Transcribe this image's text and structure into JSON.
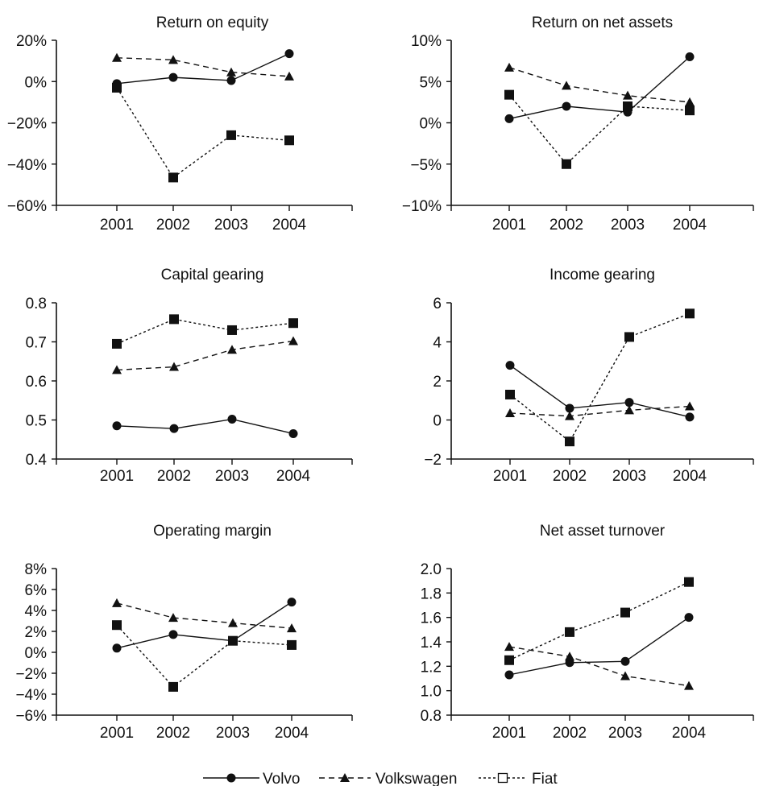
{
  "chart_data": [
    {
      "type": "line",
      "title": "Return on equity",
      "categories": [
        "2001",
        "2002",
        "2003",
        "2004"
      ],
      "ylim": [
        -60,
        20
      ],
      "yticks": [
        -60,
        -40,
        -20,
        0,
        20
      ],
      "ytick_labels": [
        "−60%",
        "−40%",
        "−20%",
        "0%",
        "20%"
      ],
      "series": [
        {
          "name": "Volvo",
          "values": [
            -1,
            2,
            0.5,
            13.5
          ]
        },
        {
          "name": "Volkswagen",
          "values": [
            11.5,
            10.5,
            4.5,
            2.5
          ]
        },
        {
          "name": "Fiat",
          "values": [
            -3,
            -46.5,
            -26,
            -28.5
          ]
        }
      ]
    },
    {
      "type": "line",
      "title": "Return on net assets",
      "categories": [
        "2001",
        "2002",
        "2003",
        "2004"
      ],
      "ylim": [
        -10,
        10
      ],
      "yticks": [
        -10,
        -5,
        0,
        5,
        10
      ],
      "ytick_labels": [
        "−10%",
        "−5%",
        "0%",
        "5%",
        "10%"
      ],
      "series": [
        {
          "name": "Volvo",
          "values": [
            0.5,
            2,
            1.3,
            8
          ]
        },
        {
          "name": "Volkswagen",
          "values": [
            6.7,
            4.5,
            3.3,
            2.5
          ]
        },
        {
          "name": "Fiat",
          "values": [
            3.4,
            -5,
            2,
            1.5
          ]
        }
      ]
    },
    {
      "type": "line",
      "title": "Capital gearing",
      "categories": [
        "2001",
        "2002",
        "2003",
        "2004"
      ],
      "ylim": [
        0.4,
        0.8
      ],
      "yticks": [
        0.4,
        0.5,
        0.6,
        0.7,
        0.8
      ],
      "ytick_labels": [
        "0.4",
        "0.5",
        "0.6",
        "0.7",
        "0.8"
      ],
      "series": [
        {
          "name": "Volvo",
          "values": [
            0.485,
            0.478,
            0.502,
            0.465
          ]
        },
        {
          "name": "Volkswagen",
          "values": [
            0.628,
            0.636,
            0.68,
            0.702
          ]
        },
        {
          "name": "Fiat",
          "values": [
            0.695,
            0.758,
            0.73,
            0.748
          ]
        }
      ]
    },
    {
      "type": "line",
      "title": "Income gearing",
      "categories": [
        "2001",
        "2002",
        "2003",
        "2004"
      ],
      "ylim": [
        -2,
        6
      ],
      "yticks": [
        -2,
        0,
        2,
        4,
        6
      ],
      "ytick_labels": [
        "−2",
        "0",
        "2",
        "4",
        "6"
      ],
      "series": [
        {
          "name": "Volvo",
          "values": [
            2.8,
            0.6,
            0.9,
            0.15
          ]
        },
        {
          "name": "Volkswagen",
          "values": [
            0.35,
            0.2,
            0.5,
            0.7
          ]
        },
        {
          "name": "Fiat",
          "values": [
            1.3,
            -1.1,
            4.25,
            5.45
          ]
        }
      ]
    },
    {
      "type": "line",
      "title": "Operating margin",
      "categories": [
        "2001",
        "2002",
        "2003",
        "2004"
      ],
      "ylim": [
        -6,
        8
      ],
      "yticks": [
        -6,
        -4,
        -2,
        0,
        2,
        4,
        6,
        8
      ],
      "ytick_labels": [
        "−6%",
        "−4%",
        "−2%",
        "0%",
        "2%",
        "4%",
        "6%",
        "8%"
      ],
      "series": [
        {
          "name": "Volvo",
          "values": [
            0.4,
            1.7,
            1.1,
            4.8
          ]
        },
        {
          "name": "Volkswagen",
          "values": [
            4.7,
            3.3,
            2.8,
            2.3
          ]
        },
        {
          "name": "Fiat",
          "values": [
            2.6,
            -3.3,
            1.1,
            0.7
          ]
        }
      ]
    },
    {
      "type": "line",
      "title": "Net asset turnover",
      "categories": [
        "2001",
        "2002",
        "2003",
        "2004"
      ],
      "ylim": [
        0.8,
        2.0
      ],
      "yticks": [
        0.8,
        1.0,
        1.2,
        1.4,
        1.6,
        1.8,
        2.0
      ],
      "ytick_labels": [
        "0.8",
        "1.0",
        "1.2",
        "1.4",
        "1.6",
        "1.8",
        "2.0"
      ],
      "series": [
        {
          "name": "Volvo",
          "values": [
            1.13,
            1.23,
            1.24,
            1.6
          ]
        },
        {
          "name": "Volkswagen",
          "values": [
            1.36,
            1.28,
            1.12,
            1.04
          ]
        },
        {
          "name": "Fiat",
          "values": [
            1.25,
            1.48,
            1.64,
            1.89
          ]
        }
      ]
    }
  ],
  "legend": {
    "placement": "bottom-center",
    "items": [
      {
        "label": "Volvo",
        "marker": "circle",
        "line": "solid"
      },
      {
        "label": "Volkswagen",
        "marker": "triangle",
        "line": "dashed"
      },
      {
        "label": "Fiat",
        "marker": "square-open",
        "line": "dotted"
      }
    ]
  },
  "colors": {
    "ink": "#111111",
    "background": "#ffffff"
  }
}
